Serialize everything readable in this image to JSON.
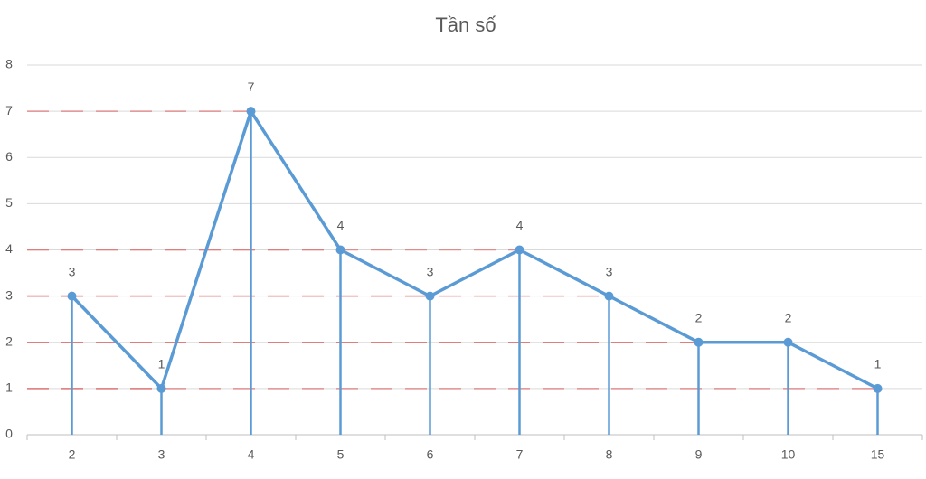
{
  "chart_data": {
    "type": "line",
    "title": "Tần số",
    "categories": [
      "2",
      "3",
      "4",
      "5",
      "6",
      "7",
      "8",
      "9",
      "10",
      "15"
    ],
    "values": [
      3,
      1,
      7,
      4,
      3,
      4,
      3,
      2,
      2,
      1
    ],
    "color": "#5b9bd5",
    "ylim": [
      0,
      8
    ],
    "yticks": [
      0,
      1,
      2,
      3,
      4,
      5,
      6,
      7,
      8
    ],
    "grid": true
  }
}
